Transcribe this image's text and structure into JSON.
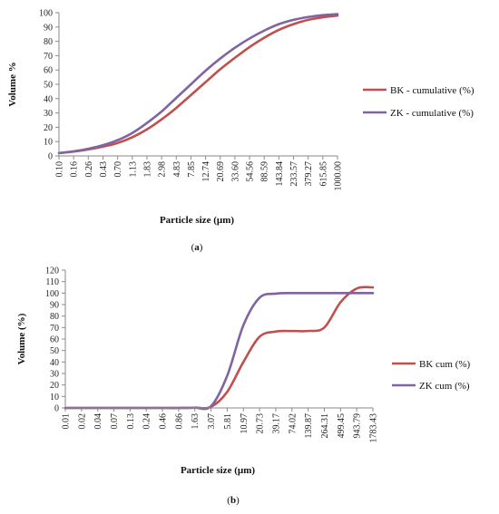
{
  "colors": {
    "bk": "#c0504d",
    "zk": "#8064a2",
    "axis": "#8a8a8a"
  },
  "chart_data": [
    {
      "type": "line",
      "caption": "a",
      "xlabel": "Particle size (µm)",
      "ylabel": "Volume %",
      "ylim": [
        0,
        100
      ],
      "yticks": [
        0,
        10,
        20,
        30,
        40,
        50,
        60,
        70,
        80,
        90,
        100
      ],
      "categories": [
        "0.10",
        "0.16",
        "0.26",
        "0.43",
        "0.70",
        "1.13",
        "1.83",
        "2.98",
        "4.83",
        "7.85",
        "12.74",
        "20.69",
        "33.60",
        "54.56",
        "88.59",
        "143.84",
        "233.57",
        "379.27",
        "615.85",
        "1000.00"
      ],
      "grid": false,
      "legend": "right",
      "series": [
        {
          "name": "BK - cumulative (%)",
          "color": "#c0504d",
          "values": [
            2,
            3,
            4.5,
            6.5,
            9,
            13,
            18.5,
            25.5,
            33.5,
            42.5,
            51.5,
            60.5,
            68.5,
            76,
            82.5,
            88,
            92,
            95,
            96.8,
            98
          ]
        },
        {
          "name": "ZK - cumulative (%)",
          "color": "#8064a2",
          "values": [
            2,
            3.2,
            5,
            7.5,
            11,
            16,
            23,
            31,
            40.5,
            50,
            59.5,
            68,
            75.5,
            82,
            87.5,
            92,
            95,
            97,
            98.3,
            99
          ]
        }
      ]
    },
    {
      "type": "line",
      "caption": "b",
      "xlabel": "Particle size (µm)",
      "ylabel": "Volume (%)",
      "ylim": [
        0,
        120
      ],
      "yticks": [
        0,
        10,
        20,
        30,
        40,
        50,
        60,
        70,
        80,
        90,
        100,
        110,
        120
      ],
      "categories": [
        "0.01",
        "0.02",
        "0.04",
        "0.07",
        "0.13",
        "0.24",
        "0.46",
        "0.86",
        "1.63",
        "3.07",
        "5.81",
        "10.97",
        "20.73",
        "39.17",
        "74.02",
        "139.87",
        "264.31",
        "499.45",
        "943.79",
        "1783.43"
      ],
      "grid": false,
      "legend": "right",
      "series": [
        {
          "name": "BK cum (%)",
          "color": "#c0504d",
          "values": [
            0,
            0,
            0,
            0,
            0,
            0,
            0,
            0,
            0.2,
            1,
            14,
            40,
            62,
            66.5,
            67,
            67,
            70,
            92,
            104,
            105
          ]
        },
        {
          "name": "ZK cum (%)",
          "color": "#8064a2",
          "values": [
            0,
            0,
            0,
            0,
            0,
            0,
            0,
            0,
            0.2,
            1.5,
            28,
            72,
            96,
            99.5,
            100,
            100,
            100,
            100,
            100,
            100
          ]
        }
      ]
    }
  ]
}
